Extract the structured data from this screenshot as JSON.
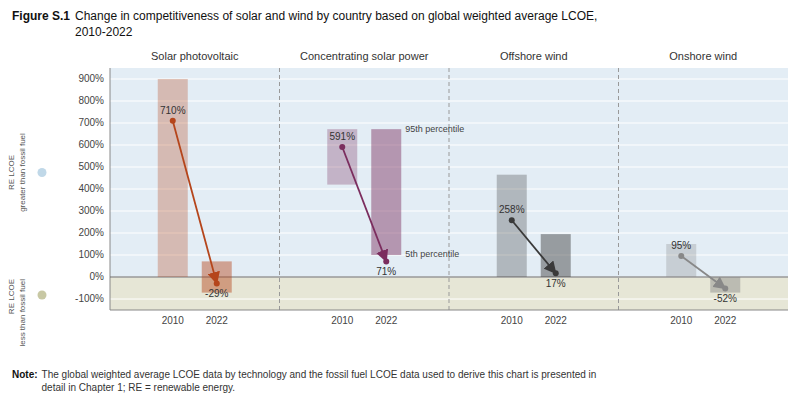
{
  "chart_data": {
    "type": "bar",
    "title": "Figure S.1",
    "subtitle": [
      "Change in competitiveness of solar and wind by country based on global weighted average LCOE,",
      "2010-2022"
    ],
    "note": [
      "Note:",
      "The global weighted average LCOE data by technology and the fossil fuel LCOE data used to derive this chart is presented in",
      "detail in Chapter 1; RE = renewable energy."
    ],
    "ylabel": [
      {
        "text": [
          "RE LCOE",
          "greater than fossil fuel"
        ],
        "color": "#c0d8e8"
      },
      {
        "text": [
          "RE LCOE",
          "less than fossil fuel"
        ],
        "color": "#c8c8a4"
      }
    ],
    "categories": [
      "Solar photovoltaic",
      "Concentrating solar power",
      "Offshore wind",
      "Onshore wind"
    ],
    "colors": [
      "#b5451b",
      "#7b2d5e",
      "#3a3a3a",
      "#888888"
    ],
    "series": [
      {
        "name": "2010",
        "low": [
          0,
          420,
          0,
          0
        ],
        "high": [
          900,
          672,
          465,
          150
        ],
        "values": [
          710,
          591,
          258,
          95
        ],
        "value_labels": [
          "710%",
          "591%",
          "258%",
          "95%"
        ]
      },
      {
        "name": "2022",
        "low": [
          -71,
          100,
          0,
          -71
        ],
        "high": [
          71,
          672,
          195,
          0
        ],
        "values": [
          -29,
          71,
          17,
          -52
        ],
        "value_labels": [
          "-29%",
          "71%",
          "17%",
          "-52%"
        ]
      }
    ],
    "annotations": [
      "95th percentile",
      "5th percentile"
    ],
    "data_labels": true,
    "grid": true,
    "ylim": [
      -150,
      950
    ],
    "yticks": [
      {
        "value": -100,
        "label": "-100%"
      },
      {
        "value": 0,
        "label": "0%"
      },
      {
        "value": 100,
        "label": "100%"
      },
      {
        "value": 200,
        "label": "200%"
      },
      {
        "value": 300,
        "label": "300%"
      },
      {
        "value": 400,
        "label": "400%"
      },
      {
        "value": 500,
        "label": "500%"
      },
      {
        "value": 600,
        "label": "600%"
      },
      {
        "value": 700,
        "label": "700%"
      },
      {
        "value": 800,
        "label": "800%"
      },
      {
        "value": 900,
        "label": "900%"
      }
    ]
  }
}
